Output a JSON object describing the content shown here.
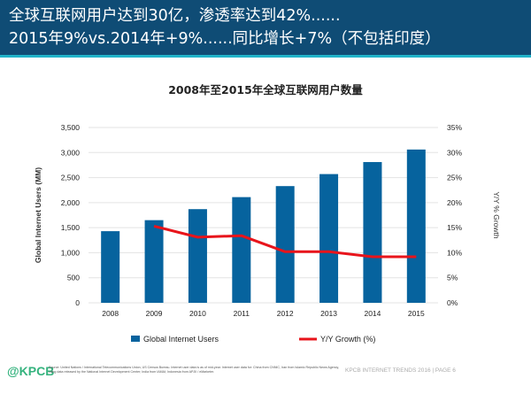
{
  "header": {
    "line1": "全球互联网用户达到30亿，渗透率达到42%......",
    "line2": "2015年9%vs.2014年+9%......同比增长+7%（不包括印度）"
  },
  "chart_data": {
    "type": "bar",
    "title": "2008年至2015年全球互联网用户数量",
    "categories": [
      "2008",
      "2009",
      "2010",
      "2011",
      "2012",
      "2013",
      "2014",
      "2015"
    ],
    "series": [
      {
        "name": "Global Internet Users",
        "type": "bar",
        "axis": "left",
        "color": "#06639e",
        "values": [
          1430,
          1650,
          1870,
          2110,
          2330,
          2570,
          2810,
          3060
        ]
      },
      {
        "name": "Y/Y Growth (%)",
        "type": "line",
        "axis": "right",
        "color": "#e8141b",
        "values": [
          null,
          15.3,
          13.1,
          13.4,
          10.2,
          10.2,
          9.2,
          9.2
        ]
      }
    ],
    "ylabel": "Global Internet Users (MM)",
    "y2label": "Y/Y % Growth",
    "ylim": [
      0,
      3500
    ],
    "y2lim": [
      0,
      35
    ],
    "yticks": [
      "0",
      "500",
      "1,000",
      "1,500",
      "2,000",
      "2,500",
      "3,000",
      "3,500"
    ],
    "y2ticks": [
      "0%",
      "5%",
      "10%",
      "15%",
      "20%",
      "25%",
      "30%",
      "35%"
    ],
    "grid": true,
    "legend": "bottom"
  },
  "footer": {
    "logo": "@KPCB",
    "source": "Source: United Nations / International Telecommunications Union, US Census Bureau. Internet user data is as of mid-year. Internet user data for: China from CNNIC, Iran from Islamic Republic News Agency, citing data released by the National Internet Development Center; India from IAMAI; Indonesia from APJII / eMarketer.",
    "page": "KPCB INTERNET TRENDS 2016  |  PAGE 6"
  }
}
